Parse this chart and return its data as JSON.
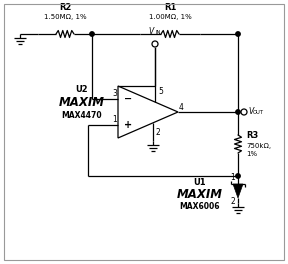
{
  "bg_color": "#ffffff",
  "line_color": "#000000",
  "text_color": "#000000",
  "border_color": "#999999",
  "R2_label": "R2",
  "R2_value": "1.50MΩ, 1%",
  "R1_label": "R1",
  "R1_value": "1.00MΩ, 1%",
  "R3_label": "R3",
  "R3_value": "750kΩ,",
  "R3_pct": "1%",
  "U2_label": "U2",
  "U2_brand": "MAXIM",
  "U2_part": "MAX4470",
  "U1_label": "U1",
  "U1_brand": "MAXIM",
  "U1_part": "MAX6006",
  "VIN_label": "V",
  "VIN_sub": "IN",
  "VOUT_label": "V",
  "VOUT_sub": "OUT",
  "pin_numbers": [
    "1",
    "2",
    "3",
    "4",
    "5"
  ]
}
